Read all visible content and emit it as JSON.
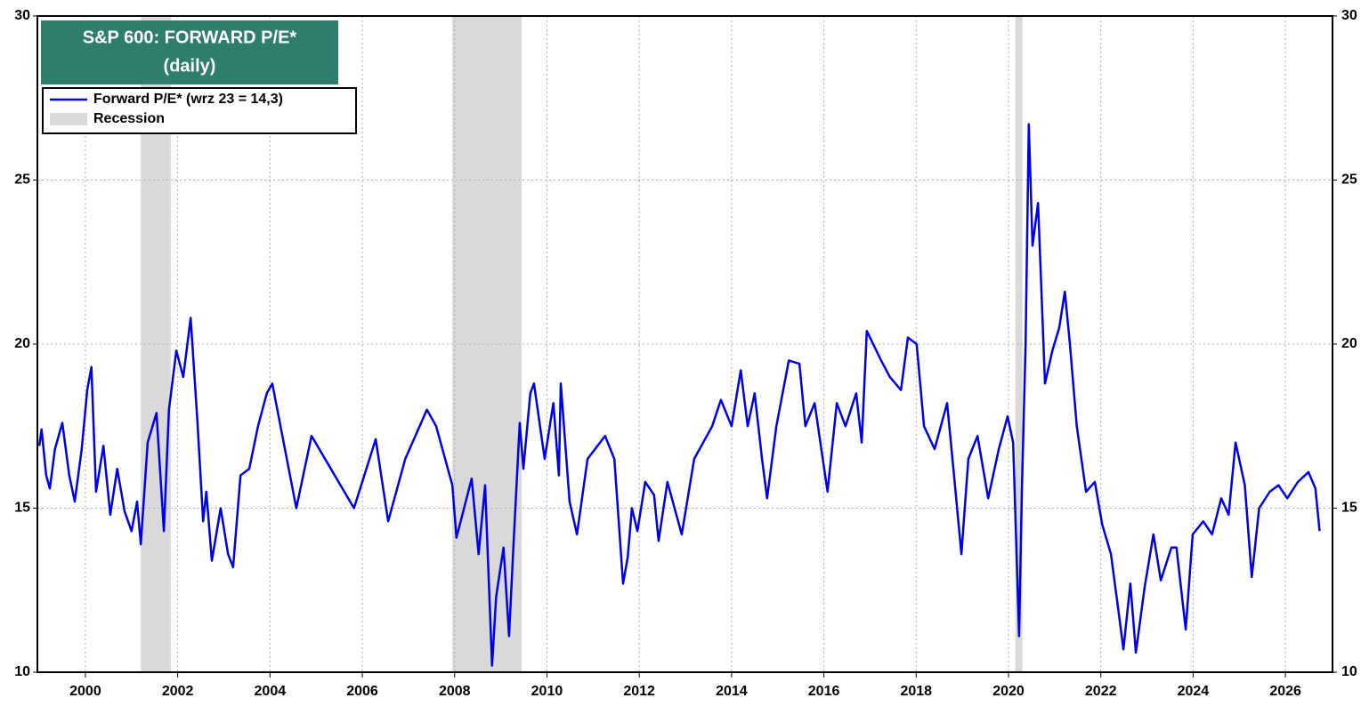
{
  "chart_data": {
    "type": "line",
    "title": [
      "S&P 600: FORWARD P/E*",
      "(daily)"
    ],
    "series": [
      {
        "name": "Forward P/E* (wrz 23 = 14,3)",
        "color": "#0000e6",
        "x": [
          1999.0,
          1999.05,
          1999.15,
          1999.23,
          1999.34,
          1999.5,
          1999.65,
          1999.77,
          1999.92,
          2000.04,
          2000.13,
          2000.23,
          2000.39,
          2000.54,
          2000.69,
          2000.85,
          2001.0,
          2001.12,
          2001.2,
          2001.35,
          2001.54,
          2001.7,
          2001.81,
          2001.97,
          2002.12,
          2002.28,
          2002.43,
          2002.55,
          2002.62,
          2002.74,
          2002.93,
          2003.09,
          2003.2,
          2003.36,
          2003.55,
          2003.74,
          2003.93,
          2004.05,
          2004.57,
          2004.9,
          2005.82,
          2006.29,
          2006.56,
          2006.93,
          2007.4,
          2007.6,
          2007.95,
          2008.04,
          2008.37,
          2008.52,
          2008.66,
          2008.81,
          2008.9,
          2009.06,
          2009.18,
          2009.28,
          2009.41,
          2009.49,
          2009.64,
          2009.72,
          2009.95,
          2010.14,
          2010.26,
          2010.3,
          2010.49,
          2010.65,
          2010.88,
          2011.26,
          2011.46,
          2011.65,
          2011.75,
          2011.84,
          2011.96,
          2012.13,
          2012.32,
          2012.42,
          2012.61,
          2012.92,
          2013.19,
          2013.58,
          2013.77,
          2014.0,
          2014.2,
          2014.35,
          2014.5,
          2014.66,
          2014.77,
          2014.97,
          2015.24,
          2015.47,
          2015.6,
          2015.8,
          2016.08,
          2016.28,
          2016.47,
          2016.7,
          2016.82,
          2016.93,
          2017.24,
          2017.43,
          2017.67,
          2017.82,
          2018.01,
          2018.17,
          2018.4,
          2018.67,
          2018.82,
          2018.98,
          2019.13,
          2019.33,
          2019.56,
          2019.79,
          2019.98,
          2020.1,
          2020.23,
          2020.29,
          2020.37,
          2020.44,
          2020.52,
          2020.64,
          2020.79,
          2020.95,
          2021.1,
          2021.22,
          2021.33,
          2021.48,
          2021.68,
          2021.87,
          2022.03,
          2022.22,
          2022.37,
          2022.49,
          2022.64,
          2022.76,
          2022.95,
          2023.14,
          2023.3,
          2023.53,
          2023.64,
          2023.84,
          2023.99,
          2024.22,
          2024.41,
          2024.61,
          2024.77,
          2024.92,
          2025.12,
          2025.27,
          2025.43,
          2025.66,
          2025.85,
          2026.04,
          2026.27,
          2026.5,
          2026.65,
          2026.74
        ],
        "values": [
          16.9,
          17.4,
          16.0,
          15.6,
          16.8,
          17.6,
          16.0,
          15.2,
          16.8,
          18.6,
          19.3,
          15.5,
          16.9,
          14.8,
          16.2,
          14.9,
          14.3,
          15.2,
          13.9,
          17.0,
          17.9,
          14.3,
          18.0,
          19.8,
          19.0,
          20.8,
          17.6,
          14.6,
          15.5,
          13.4,
          15.0,
          13.6,
          13.2,
          16.0,
          16.2,
          17.5,
          18.5,
          18.8,
          15.0,
          17.2,
          15.0,
          17.1,
          14.6,
          16.5,
          18.0,
          17.5,
          15.7,
          14.1,
          15.9,
          13.6,
          15.7,
          10.2,
          12.3,
          13.8,
          11.1,
          14.0,
          17.6,
          16.2,
          18.5,
          18.8,
          16.5,
          18.2,
          16.0,
          18.8,
          15.2,
          14.2,
          16.5,
          17.2,
          16.5,
          12.7,
          13.5,
          15.0,
          14.3,
          15.8,
          15.4,
          14.0,
          15.8,
          14.2,
          16.5,
          17.5,
          18.3,
          17.5,
          19.2,
          17.5,
          18.5,
          16.5,
          15.3,
          17.5,
          19.5,
          19.4,
          17.5,
          18.2,
          15.5,
          18.2,
          17.5,
          18.5,
          17.0,
          20.4,
          19.5,
          19.0,
          18.6,
          20.2,
          20.0,
          17.5,
          16.8,
          18.2,
          16.0,
          13.6,
          16.5,
          17.2,
          15.3,
          16.8,
          17.8,
          17.0,
          11.1,
          15.5,
          20.0,
          26.7,
          23.0,
          24.3,
          18.8,
          19.8,
          20.5,
          21.6,
          20.0,
          17.5,
          15.5,
          15.8,
          14.5,
          13.6,
          12.0,
          10.7,
          12.7,
          10.6,
          12.6,
          14.2,
          12.8,
          13.8,
          13.8,
          11.3,
          14.2,
          14.6,
          14.2,
          15.3,
          14.8,
          17.0,
          15.7,
          12.9,
          15.0,
          15.5,
          15.7,
          15.3,
          15.8,
          16.1,
          15.6,
          14.3
        ]
      }
    ],
    "recession_name": "Recession",
    "recession_color": "#d9d9d9",
    "recessions": [
      [
        2001.2,
        2001.85
      ],
      [
        2007.95,
        2009.45
      ],
      [
        2020.15,
        2020.3
      ]
    ],
    "xlim": [
      1998.96,
      2027.02
    ],
    "xticks": [
      2000,
      2002,
      2004,
      2006,
      2008,
      2010,
      2012,
      2014,
      2016,
      2018,
      2020,
      2022,
      2024,
      2026
    ],
    "ylim": [
      10,
      30
    ],
    "yticks": [
      10,
      15,
      20,
      25,
      30
    ],
    "grid": true
  }
}
